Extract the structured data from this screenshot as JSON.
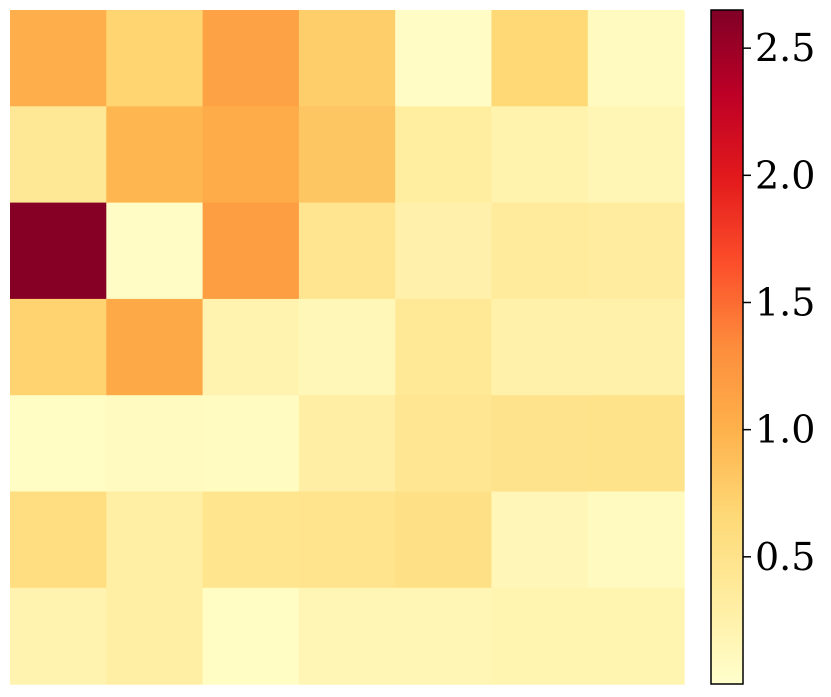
{
  "chart_data": {
    "type": "heatmap",
    "rows": 7,
    "cols": 7,
    "values": [
      [
        1.03,
        0.7,
        1.13,
        0.76,
        0.05,
        0.66,
        0.1
      ],
      [
        0.42,
        0.96,
        1.06,
        0.82,
        0.33,
        0.23,
        0.17
      ],
      [
        2.62,
        0.05,
        1.17,
        0.46,
        0.25,
        0.37,
        0.35
      ],
      [
        0.71,
        1.07,
        0.22,
        0.15,
        0.4,
        0.26,
        0.26
      ],
      [
        0.06,
        0.1,
        0.08,
        0.31,
        0.44,
        0.49,
        0.5
      ],
      [
        0.58,
        0.29,
        0.47,
        0.48,
        0.53,
        0.16,
        0.09
      ],
      [
        0.22,
        0.3,
        0.06,
        0.17,
        0.18,
        0.21,
        0.21
      ]
    ],
    "colormap": "YlOrRd",
    "vmin": 0.0,
    "vmax": 2.65,
    "colorbar": {
      "ticks": [
        0.5,
        1.0,
        1.5,
        2.0,
        2.5
      ],
      "tick_labels": [
        "0.5",
        "1.0",
        "1.5",
        "2.0",
        "2.5"
      ]
    },
    "title": "",
    "xlabel": "",
    "ylabel": "",
    "grid": false,
    "axes_visible": false
  },
  "colors": {
    "colormap_stops": [
      "#ffffcc",
      "#ffeda0",
      "#fed976",
      "#feb24c",
      "#fd8d3c",
      "#fc4e2a",
      "#e31a1c",
      "#bd0026",
      "#800026"
    ]
  }
}
